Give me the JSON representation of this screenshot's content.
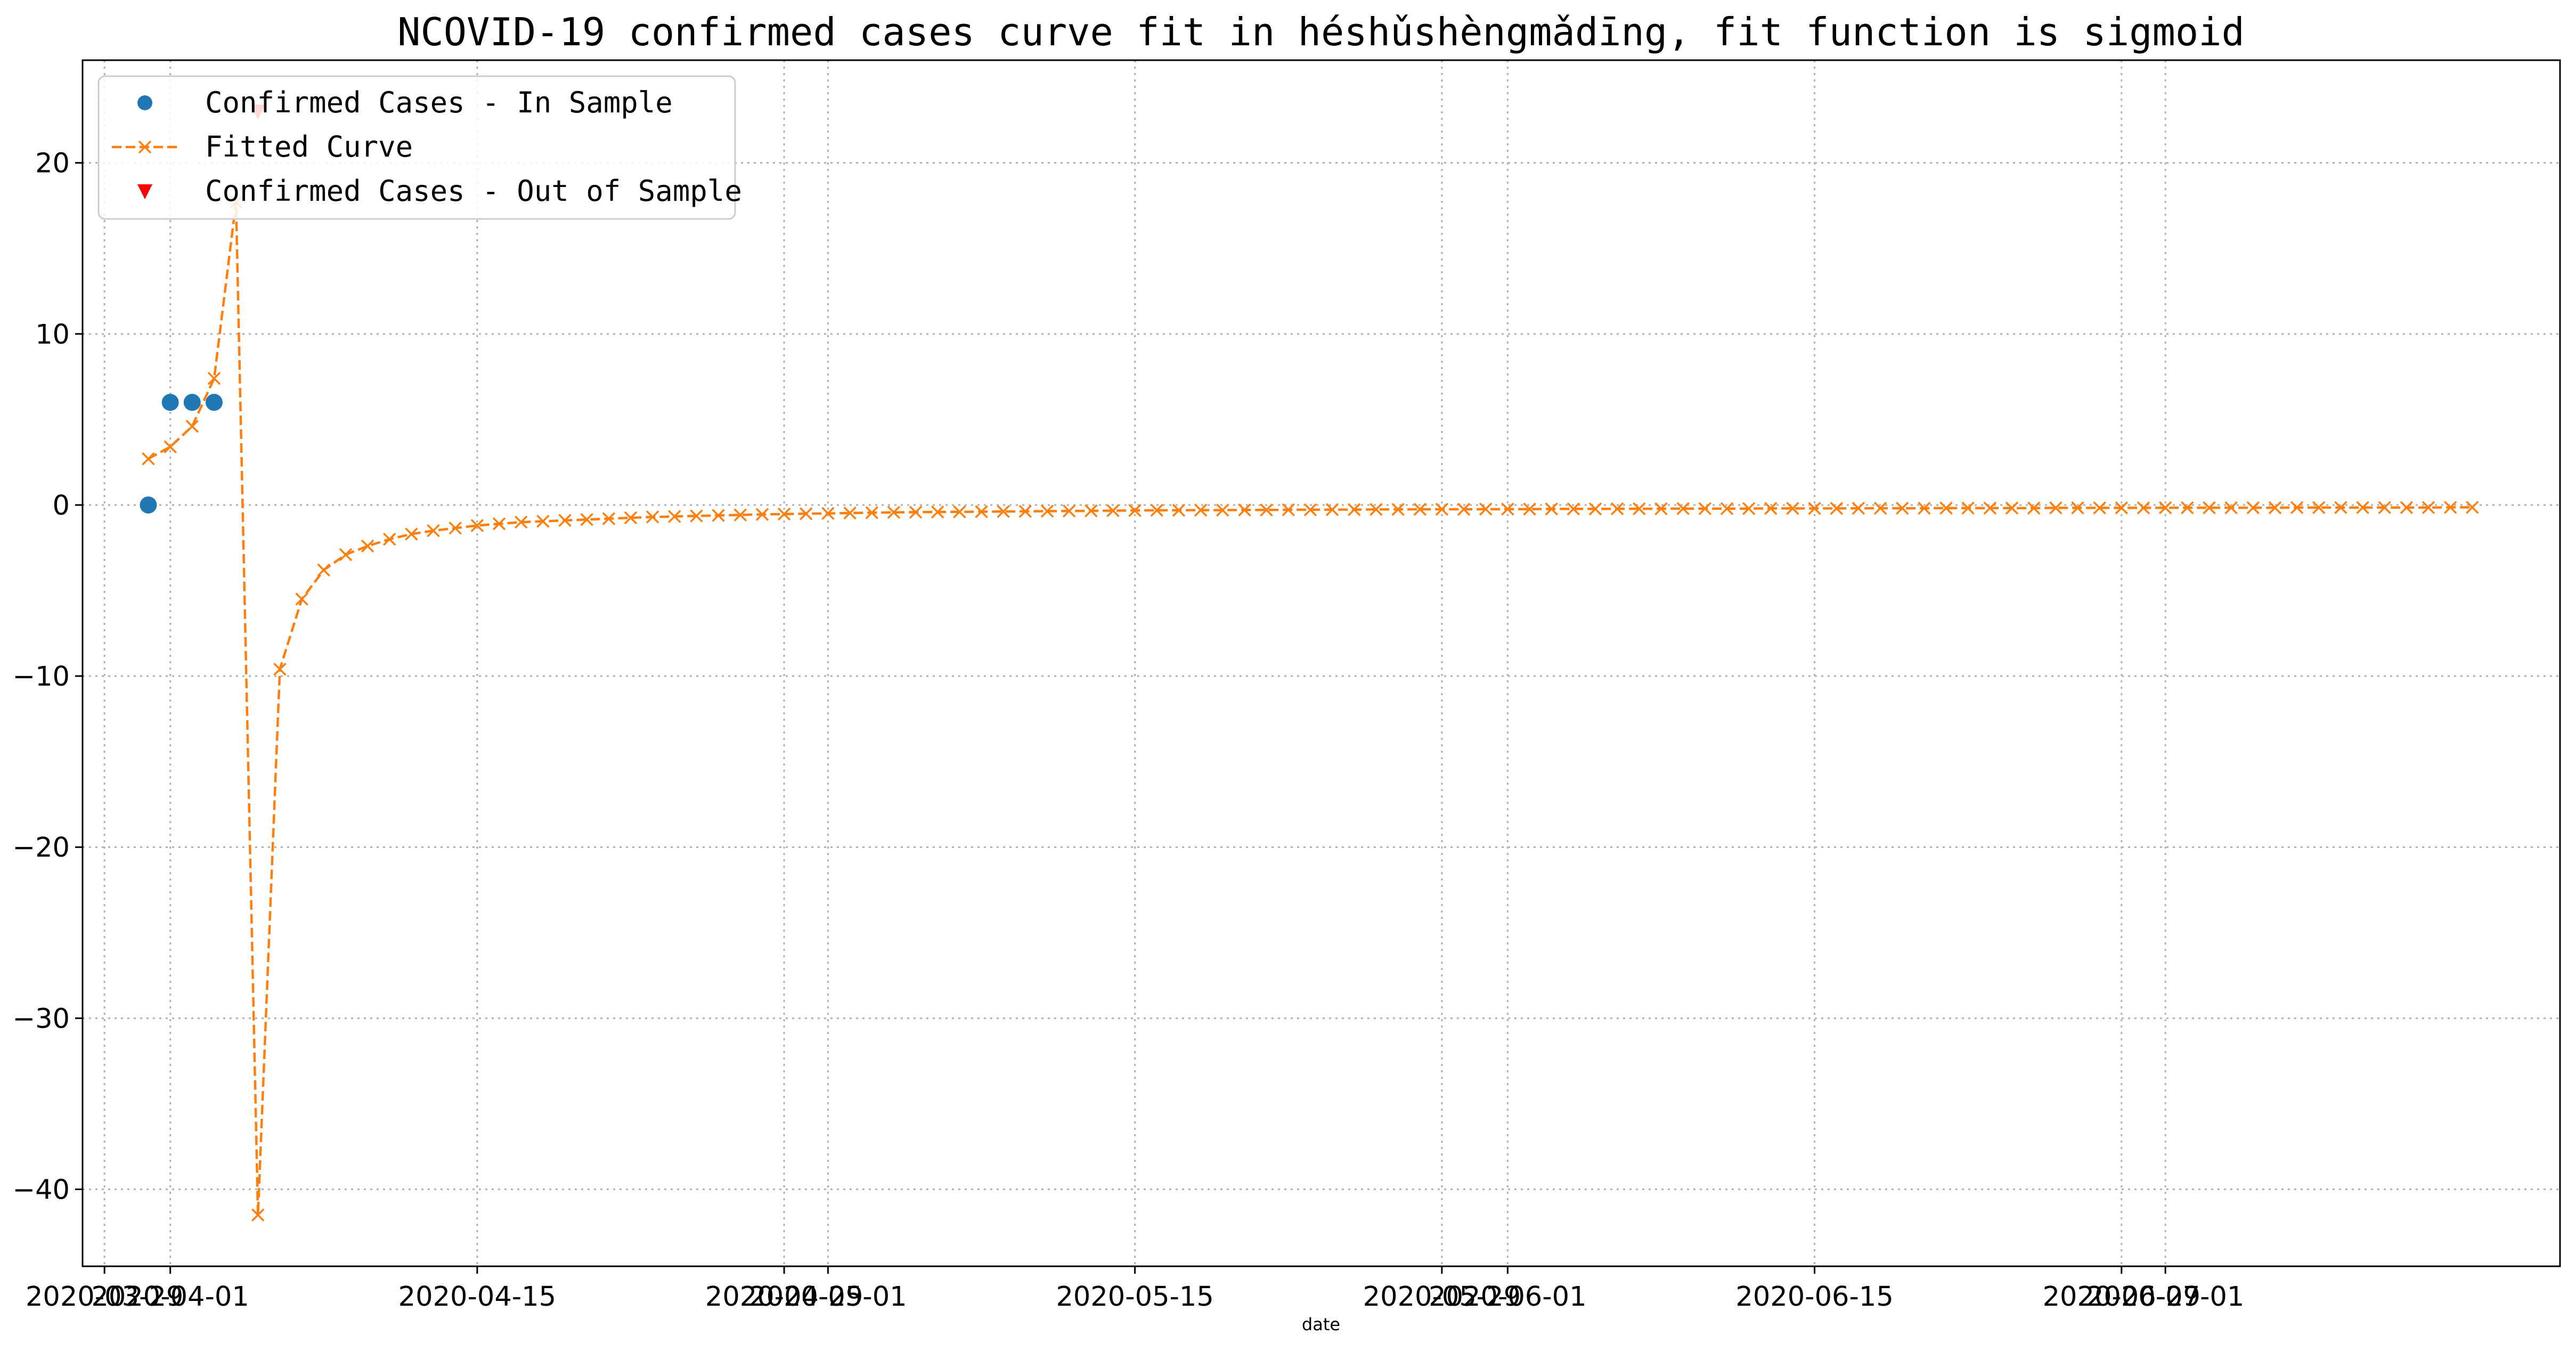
{
  "chart_data": {
    "type": "line",
    "title": "NCOVID-19 confirmed cases curve fit in héshǔshèngmǎdīng, fit function is sigmoid",
    "xlabel": "date",
    "ylabel": "",
    "xlim": [
      "2020-03-28",
      "2020-07-19"
    ],
    "ylim": [
      -44.5,
      26
    ],
    "grid": true,
    "legend_position": "top-left",
    "x_ticks": [
      "2020-03-29",
      "2020-04-01",
      "2020-04-15",
      "2020-04-29",
      "2020-05-01",
      "2020-05-15",
      "2020-05-29",
      "2020-06-01",
      "2020-06-15",
      "2020-06-29",
      "2020-07-01"
    ],
    "y_ticks": [
      20,
      10,
      0,
      -10,
      -20,
      -30,
      -40
    ],
    "colors": {
      "in_sample": "#1f77b4",
      "fitted": "#ff7f0e",
      "out_sample": "#ff0000"
    },
    "series": [
      {
        "name": "Confirmed Cases - In Sample",
        "marker": "circle",
        "points": [
          {
            "x": "2020-03-31",
            "y": 0
          },
          {
            "x": "2020-04-01",
            "y": 6
          },
          {
            "x": "2020-04-02",
            "y": 6
          },
          {
            "x": "2020-04-03",
            "y": 6
          }
        ]
      },
      {
        "name": "Fitted Curve",
        "marker": "x",
        "line": "dashed",
        "x_start": "2020-03-31",
        "x_step_days": 1,
        "values": [
          2.7,
          3.4,
          4.6,
          7.4,
          17.7,
          -41.5,
          -9.6,
          -5.5,
          -3.8,
          -2.9,
          -2.4,
          -2.0,
          -1.7,
          -1.5,
          -1.35,
          -1.2,
          -1.1,
          -1.0,
          -0.95,
          -0.9,
          -0.85,
          -0.8,
          -0.75,
          -0.7,
          -0.67,
          -0.64,
          -0.61,
          -0.58,
          -0.55,
          -0.53,
          -0.51,
          -0.49,
          -0.47,
          -0.45,
          -0.43,
          -0.42,
          -0.41,
          -0.4,
          -0.39,
          -0.38,
          -0.37,
          -0.36,
          -0.35,
          -0.34,
          -0.33,
          -0.32,
          -0.31,
          -0.31,
          -0.3,
          -0.3,
          -0.29,
          -0.29,
          -0.28,
          -0.28,
          -0.27,
          -0.27,
          -0.26,
          -0.26,
          -0.25,
          -0.25,
          -0.25,
          -0.24,
          -0.24,
          -0.24,
          -0.23,
          -0.23,
          -0.23,
          -0.22,
          -0.22,
          -0.22,
          -0.21,
          -0.21,
          -0.21,
          -0.21,
          -0.2,
          -0.2,
          -0.2,
          -0.2,
          -0.19,
          -0.19,
          -0.19,
          -0.19,
          -0.18,
          -0.18,
          -0.18,
          -0.18,
          -0.18,
          -0.17,
          -0.17,
          -0.17,
          -0.17,
          -0.17,
          -0.16,
          -0.16,
          -0.16,
          -0.16,
          -0.16,
          -0.16,
          -0.15,
          -0.15,
          -0.15,
          -0.15,
          -0.15,
          -0.15,
          -0.15,
          -0.14,
          -0.14
        ]
      },
      {
        "name": "Confirmed Cases - Out of Sample",
        "marker": "triangle_down",
        "points": [
          {
            "x": "2020-04-05",
            "y": 23
          }
        ]
      }
    ]
  }
}
